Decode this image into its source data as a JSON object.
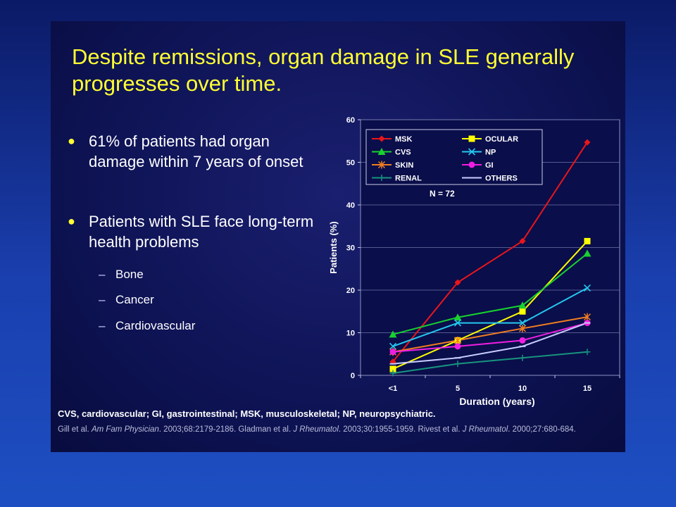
{
  "slide": {
    "title": "Despite remissions, organ damage in SLE generally progresses over time.",
    "bullets": [
      "61% of patients had organ damage within 7 years of onset",
      "Patients with SLE face long-term health problems"
    ],
    "sub_items": [
      "Bone",
      "Cancer",
      "Cardiovascular"
    ],
    "footer_definitions": "CVS, cardiovascular; GI, gastrointestinal; MSK, musculoskeletal; NP, neuropsychiatric.",
    "references": [
      {
        "text": "Gill et al. ",
        "journal": "Am Fam Physician",
        "rest": ". 2003;68:2179-2186. "
      },
      {
        "text": "Gladman et al. ",
        "journal": "J Rheumatol",
        "rest": ". 2003;30:1955-1959. "
      },
      {
        "text": "Rivest et al. ",
        "journal": "J Rheumatol",
        "rest": ". 2000;27:680-684."
      }
    ],
    "colors": {
      "title": "#ffff33",
      "background": "#0d1252"
    }
  },
  "chart_data": {
    "type": "line",
    "categories": [
      "<1",
      "5",
      "10",
      "15"
    ],
    "xlabel": "Duration (years)",
    "ylabel": "Patients (%)",
    "ylim": [
      0,
      60
    ],
    "yticks": [
      0,
      10,
      20,
      30,
      40,
      50,
      60
    ],
    "grid": "horizontal",
    "annotation": "N = 72",
    "legend_placement": "top-left",
    "series": [
      {
        "name": "MSK",
        "color": "#e8161b",
        "marker": "diamond",
        "values": [
          3.2,
          21.8,
          31.5,
          54.7
        ]
      },
      {
        "name": "OCULAR",
        "color": "#ffff00",
        "marker": "square",
        "values": [
          1.5,
          8.2,
          15.0,
          31.5
        ]
      },
      {
        "name": "CVS",
        "color": "#18d130",
        "marker": "triangle",
        "values": [
          9.6,
          13.6,
          16.4,
          28.6
        ]
      },
      {
        "name": "NP",
        "color": "#24c8ef",
        "marker": "x",
        "values": [
          6.8,
          12.3,
          12.3,
          20.5
        ]
      },
      {
        "name": "SKIN",
        "color": "#f07d20",
        "marker": "star",
        "values": [
          5.5,
          8.2,
          11.0,
          13.7
        ]
      },
      {
        "name": "GI",
        "color": "#ee1fe0",
        "marker": "circle",
        "values": [
          5.5,
          6.8,
          8.2,
          12.3
        ]
      },
      {
        "name": "RENAL",
        "color": "#18937e",
        "marker": "plus",
        "values": [
          0.5,
          2.7,
          4.1,
          5.5
        ]
      },
      {
        "name": "OTHERS",
        "color": "#c8ccff",
        "marker": "dash",
        "values": [
          2.7,
          4.1,
          6.8,
          12.3
        ]
      }
    ]
  }
}
